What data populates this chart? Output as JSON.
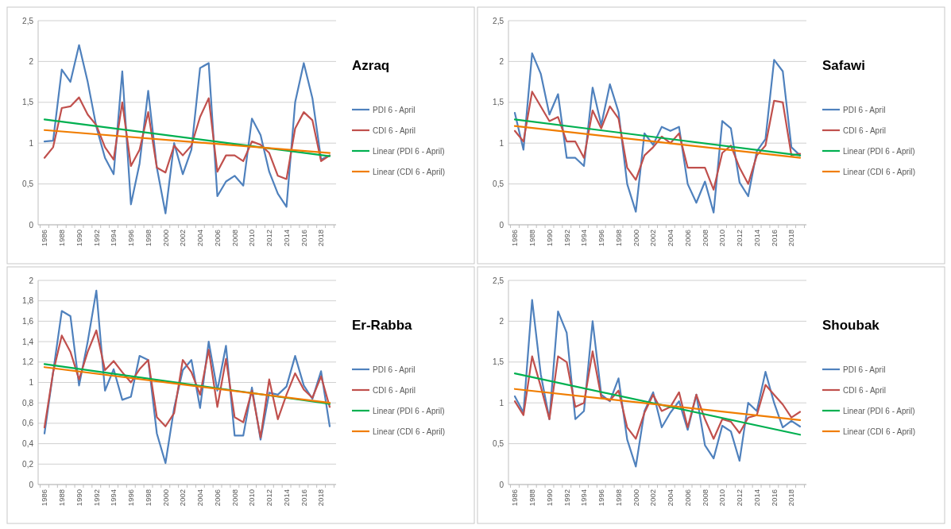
{
  "chart_data": [
    {
      "type": "line",
      "legend_title": "Azraq",
      "categories": [
        "1986",
        null,
        "1988",
        null,
        "1990",
        null,
        "1992",
        null,
        "1994",
        null,
        "1996",
        null,
        "1998",
        null,
        "2000",
        null,
        "2002",
        null,
        "2004",
        null,
        "2006",
        null,
        "2008",
        null,
        "2010",
        null,
        "2012",
        null,
        "2014",
        null,
        "2016",
        null,
        "2018",
        null
      ],
      "ylim": [
        0,
        2.5
      ],
      "yticks": [
        {
          "value": 0,
          "label": "0"
        },
        {
          "value": 0.5,
          "label": "0,5"
        },
        {
          "value": 1,
          "label": "1"
        },
        {
          "value": 1.5,
          "label": "1,5"
        },
        {
          "value": 2,
          "label": "2"
        },
        {
          "value": 2.5,
          "label": "2,5"
        }
      ],
      "grid": "y",
      "legend": "right",
      "series": [
        {
          "name": "PDI 6 - April",
          "color": "#4f81bd",
          "values": [
            1.02,
            1.03,
            1.9,
            1.75,
            2.2,
            1.75,
            1.2,
            0.82,
            0.62,
            1.88,
            0.25,
            0.75,
            1.64,
            0.7,
            0.14,
            1.0,
            0.62,
            0.92,
            1.92,
            1.98,
            0.35,
            0.53,
            0.6,
            0.48,
            1.3,
            1.1,
            0.65,
            0.38,
            0.22,
            1.5,
            1.98,
            1.55,
            0.8,
            0.85
          ]
        },
        {
          "name": "CDI 6 - April",
          "color": "#c0504d",
          "values": [
            0.82,
            0.95,
            1.43,
            1.45,
            1.56,
            1.35,
            1.22,
            0.95,
            0.8,
            1.5,
            0.72,
            0.92,
            1.38,
            0.7,
            0.64,
            0.97,
            0.85,
            0.97,
            1.32,
            1.55,
            0.65,
            0.85,
            0.85,
            0.78,
            1.02,
            0.98,
            0.88,
            0.6,
            0.56,
            1.18,
            1.38,
            1.28,
            0.78,
            0.85
          ]
        },
        {
          "name": "Linear (PDI 6 - April)",
          "color": "#00b050",
          "values": [
            1.29,
            null,
            null,
            null,
            null,
            null,
            null,
            null,
            null,
            null,
            null,
            null,
            null,
            null,
            null,
            null,
            null,
            null,
            null,
            null,
            null,
            null,
            null,
            null,
            null,
            null,
            null,
            null,
            null,
            null,
            null,
            null,
            null,
            0.84
          ]
        },
        {
          "name": "Linear (CDI 6 - April)",
          "color": "#f07d00",
          "values": [
            1.16,
            null,
            null,
            null,
            null,
            null,
            null,
            null,
            null,
            null,
            null,
            null,
            null,
            null,
            null,
            null,
            null,
            null,
            null,
            null,
            null,
            null,
            null,
            null,
            null,
            null,
            null,
            null,
            null,
            null,
            null,
            null,
            null,
            0.88
          ]
        }
      ]
    },
    {
      "type": "line",
      "legend_title": "Safawi",
      "categories": [
        "1986",
        null,
        "1988",
        null,
        "1990",
        null,
        "1992",
        null,
        "1994",
        null,
        "1996",
        null,
        "1998",
        null,
        "2000",
        null,
        "2002",
        null,
        "2004",
        null,
        "2006",
        null,
        "2008",
        null,
        "2010",
        null,
        "2012",
        null,
        "2014",
        null,
        "2016",
        null,
        "2018",
        null
      ],
      "ylim": [
        0,
        2.5
      ],
      "yticks": [
        {
          "value": 0,
          "label": "0"
        },
        {
          "value": 0.5,
          "label": "0,5"
        },
        {
          "value": 1,
          "label": "1"
        },
        {
          "value": 1.5,
          "label": "1,5"
        },
        {
          "value": 2,
          "label": "2"
        },
        {
          "value": 2.5,
          "label": "2,5"
        }
      ],
      "grid": "y",
      "legend": "right",
      "series": [
        {
          "name": "PDI 6 - April",
          "color": "#4f81bd",
          "values": [
            1.37,
            0.92,
            2.1,
            1.85,
            1.35,
            1.6,
            0.82,
            0.82,
            0.72,
            1.68,
            1.22,
            1.72,
            1.38,
            0.5,
            0.16,
            1.12,
            0.98,
            1.2,
            1.15,
            1.2,
            0.5,
            0.27,
            0.53,
            0.15,
            1.27,
            1.18,
            0.52,
            0.35,
            0.9,
            1.05,
            2.02,
            1.88,
            0.95,
            0.85
          ]
        },
        {
          "name": "CDI 6 - April",
          "color": "#c0504d",
          "values": [
            1.15,
            1.02,
            1.63,
            1.45,
            1.27,
            1.32,
            1.02,
            1.02,
            0.82,
            1.4,
            1.18,
            1.45,
            1.3,
            0.7,
            0.55,
            0.85,
            0.95,
            1.08,
            1.0,
            1.12,
            0.7,
            0.7,
            0.7,
            0.43,
            0.88,
            0.97,
            0.7,
            0.5,
            0.85,
            0.97,
            1.52,
            1.5,
            0.85,
            0.87
          ]
        },
        {
          "name": "Linear (PDI 6 - April)",
          "color": "#00b050",
          "values": [
            1.29,
            null,
            null,
            null,
            null,
            null,
            null,
            null,
            null,
            null,
            null,
            null,
            null,
            null,
            null,
            null,
            null,
            null,
            null,
            null,
            null,
            null,
            null,
            null,
            null,
            null,
            null,
            null,
            null,
            null,
            null,
            null,
            null,
            0.85
          ]
        },
        {
          "name": "Linear (CDI 6 - April)",
          "color": "#f07d00",
          "values": [
            1.21,
            null,
            null,
            null,
            null,
            null,
            null,
            null,
            null,
            null,
            null,
            null,
            null,
            null,
            null,
            null,
            null,
            null,
            null,
            null,
            null,
            null,
            null,
            null,
            null,
            null,
            null,
            null,
            null,
            null,
            null,
            null,
            null,
            0.82
          ]
        }
      ]
    },
    {
      "type": "line",
      "legend_title": "Er-Rabba",
      "categories": [
        "1986",
        null,
        "1988",
        null,
        "1990",
        null,
        "1992",
        null,
        "1994",
        null,
        "1996",
        null,
        "1998",
        null,
        "2000",
        null,
        "2002",
        null,
        "2004",
        null,
        "2006",
        null,
        "2008",
        null,
        "2010",
        null,
        "2012",
        null,
        "2014",
        null,
        "2016",
        null,
        "2018",
        null
      ],
      "ylim": [
        0,
        2
      ],
      "yticks": [
        {
          "value": 0,
          "label": "0"
        },
        {
          "value": 0.2,
          "label": "0,2"
        },
        {
          "value": 0.4,
          "label": "0,4"
        },
        {
          "value": 0.6,
          "label": "0,6"
        },
        {
          "value": 0.8,
          "label": "0,8"
        },
        {
          "value": 1,
          "label": "1"
        },
        {
          "value": 1.2,
          "label": "1,2"
        },
        {
          "value": 1.4,
          "label": "1,4"
        },
        {
          "value": 1.6,
          "label": "1,6"
        },
        {
          "value": 1.8,
          "label": "1,8"
        },
        {
          "value": 2,
          "label": "2"
        }
      ],
      "grid": "y",
      "legend": "right",
      "series": [
        {
          "name": "PDI 6 - April",
          "color": "#4f81bd",
          "values": [
            0.5,
            1.1,
            1.7,
            1.65,
            0.97,
            1.4,
            1.9,
            0.92,
            1.13,
            0.83,
            0.86,
            1.26,
            1.22,
            0.5,
            0.21,
            0.75,
            1.12,
            1.22,
            0.75,
            1.4,
            0.92,
            1.36,
            0.48,
            0.48,
            0.95,
            0.44,
            0.9,
            0.88,
            0.96,
            1.26,
            0.97,
            0.84,
            1.11,
            0.57
          ]
        },
        {
          "name": "CDI 6 - April",
          "color": "#c0504d",
          "values": [
            0.56,
            1.1,
            1.46,
            1.3,
            1.03,
            1.3,
            1.51,
            1.12,
            1.21,
            1.1,
            1.0,
            1.13,
            1.22,
            0.66,
            0.57,
            0.7,
            1.22,
            1.1,
            0.88,
            1.32,
            0.76,
            1.23,
            0.66,
            0.61,
            0.92,
            0.46,
            1.03,
            0.64,
            0.88,
            1.09,
            0.93,
            0.85,
            1.06,
            0.76
          ]
        },
        {
          "name": "Linear (PDI 6 - April)",
          "color": "#00b050",
          "values": [
            1.18,
            null,
            null,
            null,
            null,
            null,
            null,
            null,
            null,
            null,
            null,
            null,
            null,
            null,
            null,
            null,
            null,
            null,
            null,
            null,
            null,
            null,
            null,
            null,
            null,
            null,
            null,
            null,
            null,
            null,
            null,
            null,
            null,
            0.79
          ]
        },
        {
          "name": "Linear (CDI 6 - April)",
          "color": "#f07d00",
          "values": [
            1.15,
            null,
            null,
            null,
            null,
            null,
            null,
            null,
            null,
            null,
            null,
            null,
            null,
            null,
            null,
            null,
            null,
            null,
            null,
            null,
            null,
            null,
            null,
            null,
            null,
            null,
            null,
            null,
            null,
            null,
            null,
            null,
            null,
            0.8
          ]
        }
      ]
    },
    {
      "type": "line",
      "legend_title": "Shoubak",
      "categories": [
        "1986",
        null,
        "1988",
        null,
        "1990",
        null,
        "1992",
        null,
        "1994",
        null,
        "1996",
        null,
        "1998",
        null,
        "2000",
        null,
        "2002",
        null,
        "2004",
        null,
        "2006",
        null,
        "2008",
        null,
        "2010",
        null,
        "2012",
        null,
        "2014",
        null,
        "2016",
        null,
        "2018",
        null
      ],
      "ylim": [
        0,
        2.5
      ],
      "yticks": [
        {
          "value": 0,
          "label": "0"
        },
        {
          "value": 0.5,
          "label": "0,5"
        },
        {
          "value": 1,
          "label": "1"
        },
        {
          "value": 1.5,
          "label": "1,5"
        },
        {
          "value": 2,
          "label": "2"
        },
        {
          "value": 2.5,
          "label": "2,5"
        }
      ],
      "grid": "y",
      "legend": "right",
      "series": [
        {
          "name": "PDI 6 - April",
          "color": "#4f81bd",
          "values": [
            1.08,
            0.88,
            2.26,
            1.35,
            0.8,
            2.12,
            1.86,
            0.8,
            0.9,
            2.0,
            1.1,
            1.02,
            1.3,
            0.55,
            0.22,
            0.9,
            1.13,
            0.7,
            0.88,
            1.02,
            0.67,
            1.1,
            0.48,
            0.32,
            0.72,
            0.65,
            0.29,
            1.0,
            0.9,
            1.38,
            1.0,
            0.7,
            0.78,
            0.71
          ]
        },
        {
          "name": "CDI 6 - April",
          "color": "#c0504d",
          "values": [
            1.02,
            0.85,
            1.57,
            1.2,
            0.8,
            1.57,
            1.5,
            0.95,
            1.0,
            1.63,
            1.07,
            1.03,
            1.15,
            0.7,
            0.56,
            0.88,
            1.1,
            0.9,
            0.95,
            1.13,
            0.7,
            1.1,
            0.8,
            0.56,
            0.8,
            0.77,
            0.63,
            0.82,
            0.85,
            1.22,
            1.1,
            0.98,
            0.82,
            0.89
          ]
        },
        {
          "name": "Linear (PDI 6 - April)",
          "color": "#00b050",
          "values": [
            1.36,
            null,
            null,
            null,
            null,
            null,
            null,
            null,
            null,
            null,
            null,
            null,
            null,
            null,
            null,
            null,
            null,
            null,
            null,
            null,
            null,
            null,
            null,
            null,
            null,
            null,
            null,
            null,
            null,
            null,
            null,
            null,
            null,
            0.61
          ]
        },
        {
          "name": "Linear (CDI 6 - April)",
          "color": "#f07d00",
          "values": [
            1.17,
            null,
            null,
            null,
            null,
            null,
            null,
            null,
            null,
            null,
            null,
            null,
            null,
            null,
            null,
            null,
            null,
            null,
            null,
            null,
            null,
            null,
            null,
            null,
            null,
            null,
            null,
            null,
            null,
            null,
            null,
            null,
            null,
            0.79
          ]
        }
      ]
    }
  ]
}
